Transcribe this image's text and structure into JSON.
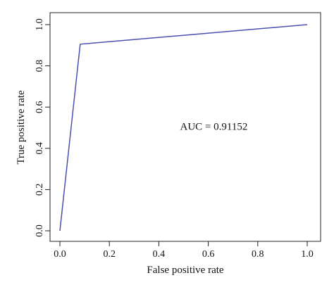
{
  "chart_data": {
    "type": "line",
    "xlabel": "False positive rate",
    "ylabel": "True positive rate",
    "xlim": [
      0,
      1
    ],
    "ylim": [
      0,
      1
    ],
    "xticks": [
      "0.0",
      "0.2",
      "0.4",
      "0.6",
      "0.8",
      "1.0"
    ],
    "yticks": [
      "0.0",
      "0.2",
      "0.4",
      "0.6",
      "0.8",
      "1.0"
    ],
    "series": [
      {
        "x": [
          0.0,
          0.082,
          1.0
        ],
        "y": [
          0.0,
          0.905,
          1.0
        ]
      }
    ],
    "annotation": {
      "text": "AUC = 0.91152",
      "x": 0.5,
      "y": 0.49
    },
    "grid": false,
    "line_color": "#4a4fb0"
  }
}
